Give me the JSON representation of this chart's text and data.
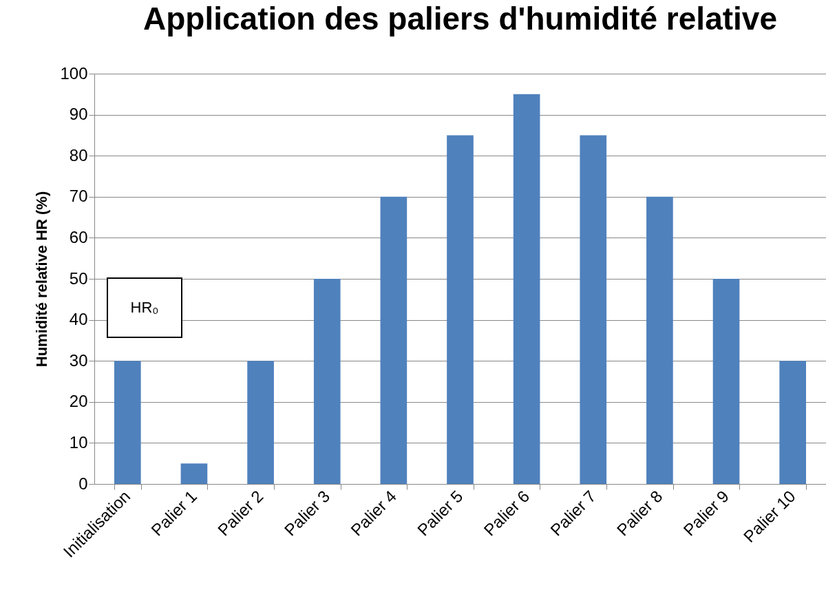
{
  "chart_data": {
    "type": "bar",
    "title": "Application des paliers d'humidité relative",
    "ylabel": "Humidité relative HR (%)",
    "categories": [
      "Initialisation",
      "Palier 1",
      "Palier 2",
      "Palier 3",
      "Palier 4",
      "Palier 5",
      "Palier 6",
      "Palier 7",
      "Palier 8",
      "Palier 9",
      "Palier 10"
    ],
    "values": [
      30,
      5,
      30,
      50,
      70,
      85,
      95,
      85,
      70,
      50,
      30
    ],
    "color": "#4f81bd",
    "ylim": [
      0,
      100
    ],
    "yticks": [
      0,
      10,
      20,
      30,
      40,
      50,
      60,
      70,
      80,
      90,
      100
    ],
    "grid": "y",
    "annotations": [
      "HR₀"
    ]
  }
}
